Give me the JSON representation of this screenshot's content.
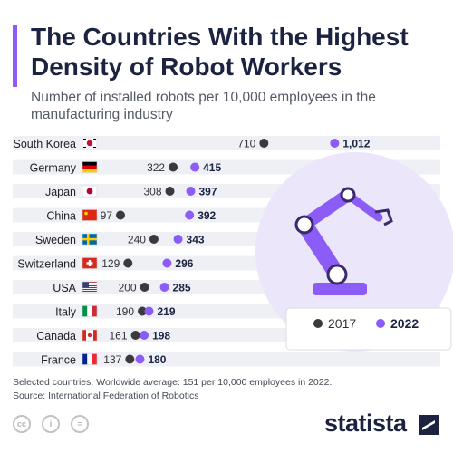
{
  "title": "The Countries With the Highest Density of Robot Workers",
  "subtitle": "Number of installed robots per 10,000 employees in the manufacturing industry",
  "footnote": {
    "line1": "Selected countries. Worldwide average: 151 per 10,000 employees in 2022.",
    "line2": "Source: International Federation of Robotics"
  },
  "brand": "statista",
  "colors": {
    "accent": "#8b5cf6",
    "dot_2017": "#3a3a3a",
    "dot_2022": "#8b5cf6",
    "row_stripe": "#eef0f6",
    "illustration_circle": "#ece6fb",
    "robot": "#8b5cf6"
  },
  "chart_data": {
    "type": "dumbbell",
    "categories": [
      "South Korea",
      "Germany",
      "Japan",
      "China",
      "Sweden",
      "Switzerland",
      "USA",
      "Italy",
      "Canada",
      "France"
    ],
    "flags": [
      "south-korea-flag",
      "germany-flag",
      "japan-flag",
      "china-flag",
      "sweden-flag",
      "switzerland-flag",
      "usa-flag",
      "italy-flag",
      "canada-flag",
      "france-flag"
    ],
    "series": [
      {
        "name": "2017",
        "values": [
          710,
          322,
          308,
          97,
          240,
          129,
          200,
          190,
          161,
          137
        ],
        "labels": [
          "710",
          "322",
          "308",
          "97",
          "240",
          "129",
          "200",
          "190",
          "161",
          "137"
        ]
      },
      {
        "name": "2022",
        "values": [
          1012,
          415,
          397,
          392,
          343,
          296,
          285,
          219,
          198,
          180
        ],
        "labels": [
          "1,012",
          "415",
          "397",
          "392",
          "343",
          "296",
          "285",
          "219",
          "198",
          "180"
        ]
      }
    ],
    "xlim": [
      0,
      1100
    ],
    "legend": "bottom-right",
    "grid": false
  }
}
